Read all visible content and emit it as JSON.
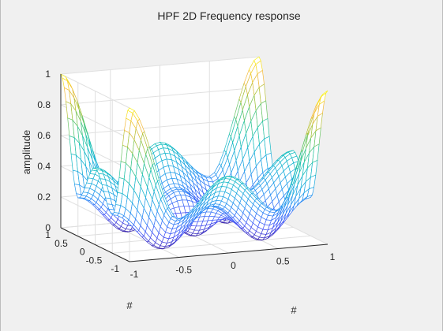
{
  "chart_data": {
    "type": "surface",
    "title": "HPF 2D Frequency response",
    "xlabel": "#",
    "ylabel": "#",
    "zlabel": "amplitude",
    "xlim": [
      -1,
      1
    ],
    "ylim": [
      -1,
      1
    ],
    "zlim": [
      0,
      1
    ],
    "x_ticks": [
      -1,
      -0.5,
      0,
      0.5,
      1
    ],
    "x_tick_labels": [
      "-1",
      "-0.5",
      "0",
      "0.5",
      "1"
    ],
    "y_ticks": [
      -1,
      -0.5,
      0,
      0.5,
      1
    ],
    "y_tick_labels": [
      "-1",
      "-0.5",
      "0",
      "0.5",
      "1"
    ],
    "z_ticks": [
      0,
      0.2,
      0.4,
      0.6,
      0.8,
      1
    ],
    "z_tick_labels": [
      "0",
      "0.2",
      "0.4",
      "0.6",
      "0.8",
      "1"
    ],
    "grid": true,
    "colormap": "parula",
    "mesh_resolution": 41,
    "surface_samples": {
      "x": [
        -1,
        -0.5,
        0,
        0.5,
        1
      ],
      "y": [
        -1,
        -0.5,
        0,
        0.5,
        1
      ],
      "z": [
        [
          1.0,
          0.25,
          0.5,
          0.25,
          1.0
        ],
        [
          0.25,
          0.0,
          0.25,
          0.0,
          0.25
        ],
        [
          0.5,
          0.25,
          0.0,
          0.25,
          0.5
        ],
        [
          0.25,
          0.0,
          0.25,
          0.0,
          0.25
        ],
        [
          1.0,
          0.25,
          0.5,
          0.25,
          1.0
        ]
      ]
    }
  }
}
